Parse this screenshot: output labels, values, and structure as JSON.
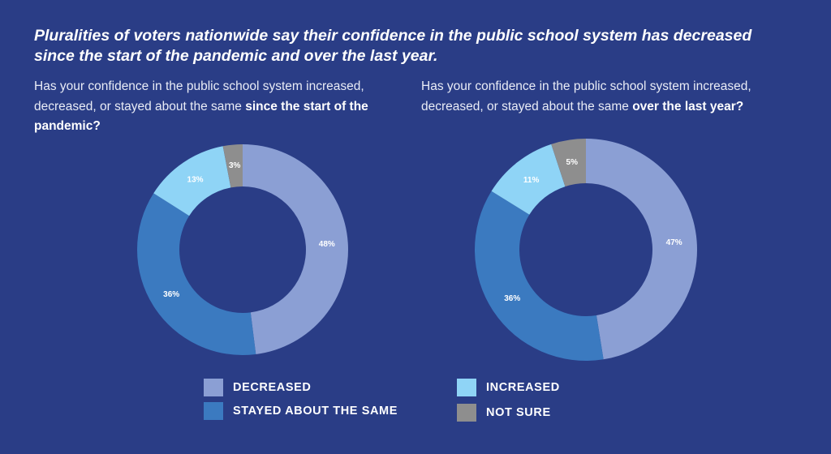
{
  "headline": "Pluralities of voters nationwide say their confidence in the public school system has decreased since the start of the pandemic and over the last year.",
  "legend": [
    {
      "label": "DECREASED",
      "color": "#8b9fd4"
    },
    {
      "label": "STAYED ABOUT THE SAME",
      "color": "#3b7ac0"
    },
    {
      "label": "INCREASED",
      "color": "#8fd4f6"
    },
    {
      "label": "NOT SURE",
      "color": "#8e8e8e"
    }
  ],
  "chart_data": [
    {
      "type": "pie",
      "donut": true,
      "question_prefix": "Has your confidence in the public school system increased, decreased, or stayed about the same ",
      "question_emphasis": "since the start of the pandemic?",
      "categories": [
        "DECREASED",
        "STAYED ABOUT THE SAME",
        "INCREASED",
        "NOT SURE"
      ],
      "values": [
        48,
        36,
        13,
        3
      ],
      "data_labels": [
        "48%",
        "36%",
        "13%",
        "3%"
      ],
      "colors": [
        "#8b9fd4",
        "#3b7ac0",
        "#8fd4f6",
        "#8e8e8e"
      ]
    },
    {
      "type": "pie",
      "donut": true,
      "question_prefix": "Has your confidence in the public school system increased, decreased, or stayed about the same ",
      "question_emphasis": "over the last year?",
      "categories": [
        "DECREASED",
        "STAYED ABOUT THE SAME",
        "INCREASED",
        "NOT SURE"
      ],
      "values": [
        47,
        36,
        11,
        5
      ],
      "data_labels": [
        "47%",
        "36%",
        "11%",
        "5%"
      ],
      "colors": [
        "#8b9fd4",
        "#3b7ac0",
        "#8fd4f6",
        "#8e8e8e"
      ]
    }
  ]
}
